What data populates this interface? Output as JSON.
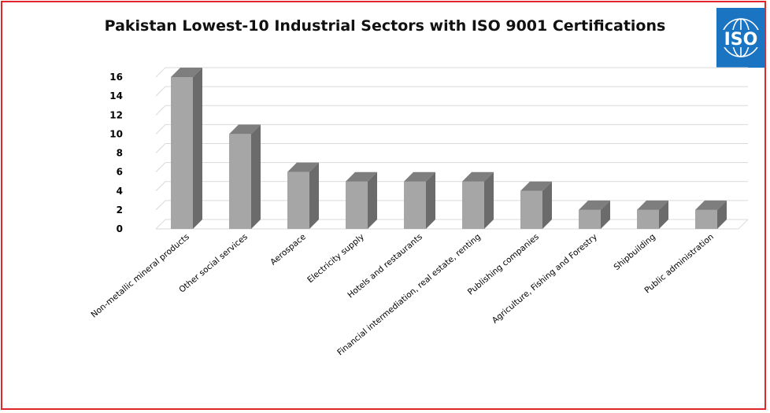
{
  "chart_data": {
    "type": "bar",
    "title": "Pakistan Lowest-10 Industrial Sectors with ISO 9001 Certifications",
    "categories": [
      "Non-metallic mineral products",
      "Other social services",
      "Aerospace",
      "Electricity supply",
      "Hotels and restaurants",
      "Financial intermediation, real estate, renting",
      "Publishing companies",
      "Agriculture, Fishing and Forestry",
      "Shipbuilding",
      "Public administration"
    ],
    "values": [
      16,
      10,
      6,
      5,
      5,
      5,
      4,
      2,
      2,
      2
    ],
    "ylim": [
      0,
      16
    ],
    "yticks": [
      "0",
      "2",
      "4",
      "6",
      "8",
      "10",
      "12",
      "14",
      "16"
    ],
    "xlabel": "",
    "ylabel": "",
    "grid": true,
    "style": "3d-column",
    "bar_color": "#a6a6a6",
    "bar_side_color": "#6b6b6b",
    "bar_top_color": "#7e7e7e"
  },
  "logo": {
    "text": "ISO",
    "color": "#1a74c2"
  },
  "frame_color": "#e0262b"
}
